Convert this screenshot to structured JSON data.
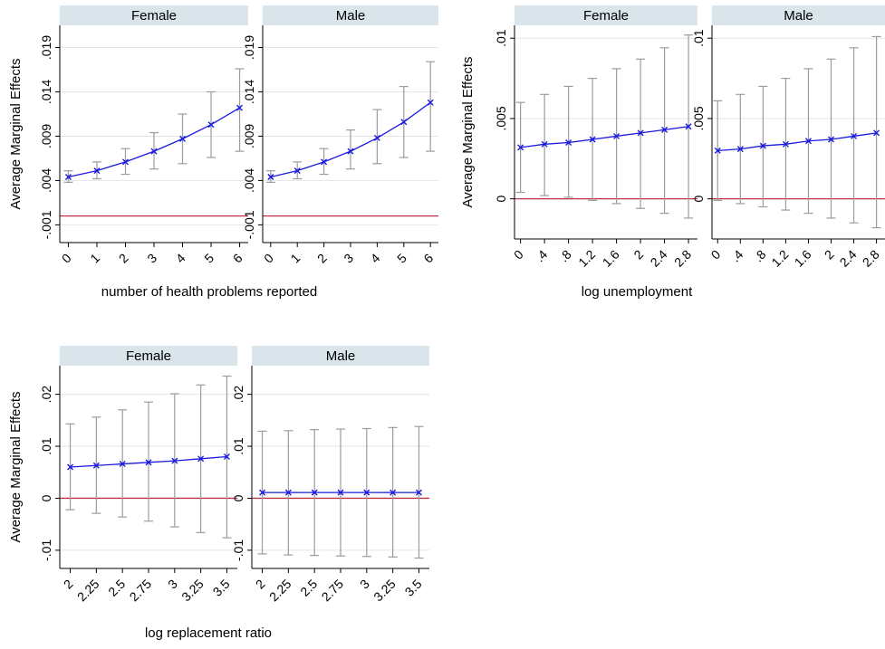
{
  "colors": {
    "strip": "#d9e4eb",
    "grid": "#e4e4e4",
    "ci": "#9c9c9c",
    "estimate": "#1a1adf",
    "zero_line": "#c0324a"
  },
  "chart_data": [
    {
      "type": "line",
      "ylabel": "Average Marginal Effects",
      "xlabel": "number of health problems reported",
      "ylim": [
        -0.003,
        0.0215
      ],
      "yticks": [
        -0.001,
        0.004,
        0.009,
        0.014,
        0.019
      ],
      "ytick_labels": [
        "-.001",
        ".004",
        ".009",
        ".014",
        ".019"
      ],
      "xticks": [
        0,
        1,
        2,
        3,
        4,
        5,
        6
      ],
      "xtick_labels": [
        "0",
        "1",
        "2",
        "3",
        "4",
        "5",
        "6"
      ],
      "xlim": [
        -0.3,
        6.3
      ],
      "zero_line": 0,
      "grid": true,
      "series": [
        {
          "name": "Female",
          "x": [
            0,
            1,
            2,
            3,
            4,
            5,
            6
          ],
          "values": [
            0.0044,
            0.0051,
            0.0061,
            0.0073,
            0.0087,
            0.0103,
            0.0122
          ],
          "ci_low": [
            0.0038,
            0.0042,
            0.0047,
            0.0053,
            0.0059,
            0.0066,
            0.0073
          ],
          "ci_high": [
            0.0051,
            0.0061,
            0.0076,
            0.0094,
            0.0115,
            0.014,
            0.0166
          ]
        },
        {
          "name": "Male",
          "x": [
            0,
            1,
            2,
            3,
            4,
            5,
            6
          ],
          "values": [
            0.0044,
            0.0051,
            0.0061,
            0.0073,
            0.0088,
            0.0106,
            0.0128
          ],
          "ci_low": [
            0.0038,
            0.0042,
            0.0047,
            0.0053,
            0.0059,
            0.0066,
            0.0073
          ],
          "ci_high": [
            0.0051,
            0.0061,
            0.0076,
            0.0097,
            0.012,
            0.0146,
            0.0174
          ]
        }
      ]
    },
    {
      "type": "line",
      "ylabel": "Average Marginal Effects",
      "xlabel": "log unemployment",
      "ylim": [
        -0.0025,
        0.0108
      ],
      "yticks": [
        0,
        0.005,
        0.01
      ],
      "ytick_labels": [
        "0",
        ".005",
        ".01"
      ],
      "xticks": [
        0,
        0.4,
        0.8,
        1.2,
        1.6,
        2,
        2.4,
        2.8
      ],
      "xtick_labels": [
        "0",
        ".4",
        ".8",
        "1.2",
        "1.6",
        "2",
        "2.4",
        "2.8"
      ],
      "xlim": [
        -0.1,
        2.95
      ],
      "zero_line": 0,
      "grid": true,
      "series": [
        {
          "name": "Female",
          "x": [
            0,
            0.4,
            0.8,
            1.2,
            1.6,
            2,
            2.4,
            2.8
          ],
          "values": [
            0.0032,
            0.0034,
            0.0035,
            0.0037,
            0.0039,
            0.0041,
            0.0043,
            0.0045
          ],
          "ci_low": [
            0.0004,
            0.0002,
            0.0001,
            -0.0001,
            -0.0003,
            -0.0006,
            -0.0009,
            -0.0012
          ],
          "ci_high": [
            0.006,
            0.0065,
            0.007,
            0.0075,
            0.0081,
            0.0087,
            0.0094,
            0.0102
          ]
        },
        {
          "name": "Male",
          "x": [
            0,
            0.4,
            0.8,
            1.2,
            1.6,
            2,
            2.4,
            2.8
          ],
          "values": [
            0.003,
            0.0031,
            0.0033,
            0.0034,
            0.0036,
            0.0037,
            0.0039,
            0.0041
          ],
          "ci_low": [
            -0.0001,
            -0.0003,
            -0.0005,
            -0.0007,
            -0.0009,
            -0.0012,
            -0.0015,
            -0.0018
          ],
          "ci_high": [
            0.0061,
            0.0065,
            0.007,
            0.0075,
            0.0081,
            0.0087,
            0.0094,
            0.0101
          ]
        }
      ]
    },
    {
      "type": "line",
      "ylabel": "Average Marginal Effects",
      "xlabel": "log replacement ratio",
      "ylim": [
        -0.0135,
        0.0255
      ],
      "yticks": [
        -0.01,
        0,
        0.01,
        0.02
      ],
      "ytick_labels": [
        "-.01",
        "0",
        ".01",
        ".02"
      ],
      "xticks": [
        2,
        2.25,
        2.5,
        2.75,
        3,
        3.25,
        3.5
      ],
      "xtick_labels": [
        "2",
        "2.25",
        "2.5",
        "2.75",
        "3",
        "3.25",
        "3.5"
      ],
      "xlim": [
        1.9,
        3.6
      ],
      "zero_line": 0,
      "grid": true,
      "series": [
        {
          "name": "Female",
          "x": [
            2,
            2.25,
            2.5,
            2.75,
            3,
            3.25,
            3.5
          ],
          "values": [
            0.006,
            0.0063,
            0.0066,
            0.0069,
            0.0072,
            0.0076,
            0.008
          ],
          "ci_low": [
            -0.0022,
            -0.0029,
            -0.0036,
            -0.0044,
            -0.0055,
            -0.0066,
            -0.0076
          ],
          "ci_high": [
            0.0143,
            0.0156,
            0.017,
            0.0185,
            0.0201,
            0.0218,
            0.0235
          ]
        },
        {
          "name": "Male",
          "x": [
            2,
            2.25,
            2.5,
            2.75,
            3,
            3.25,
            3.5
          ],
          "values": [
            0.0011,
            0.0011,
            0.0011,
            0.0011,
            0.0011,
            0.0011,
            0.0011
          ],
          "ci_low": [
            -0.0107,
            -0.0109,
            -0.011,
            -0.0111,
            -0.0112,
            -0.0113,
            -0.0115
          ],
          "ci_high": [
            0.0129,
            0.013,
            0.0132,
            0.0133,
            0.0134,
            0.0136,
            0.0138
          ]
        }
      ]
    }
  ]
}
